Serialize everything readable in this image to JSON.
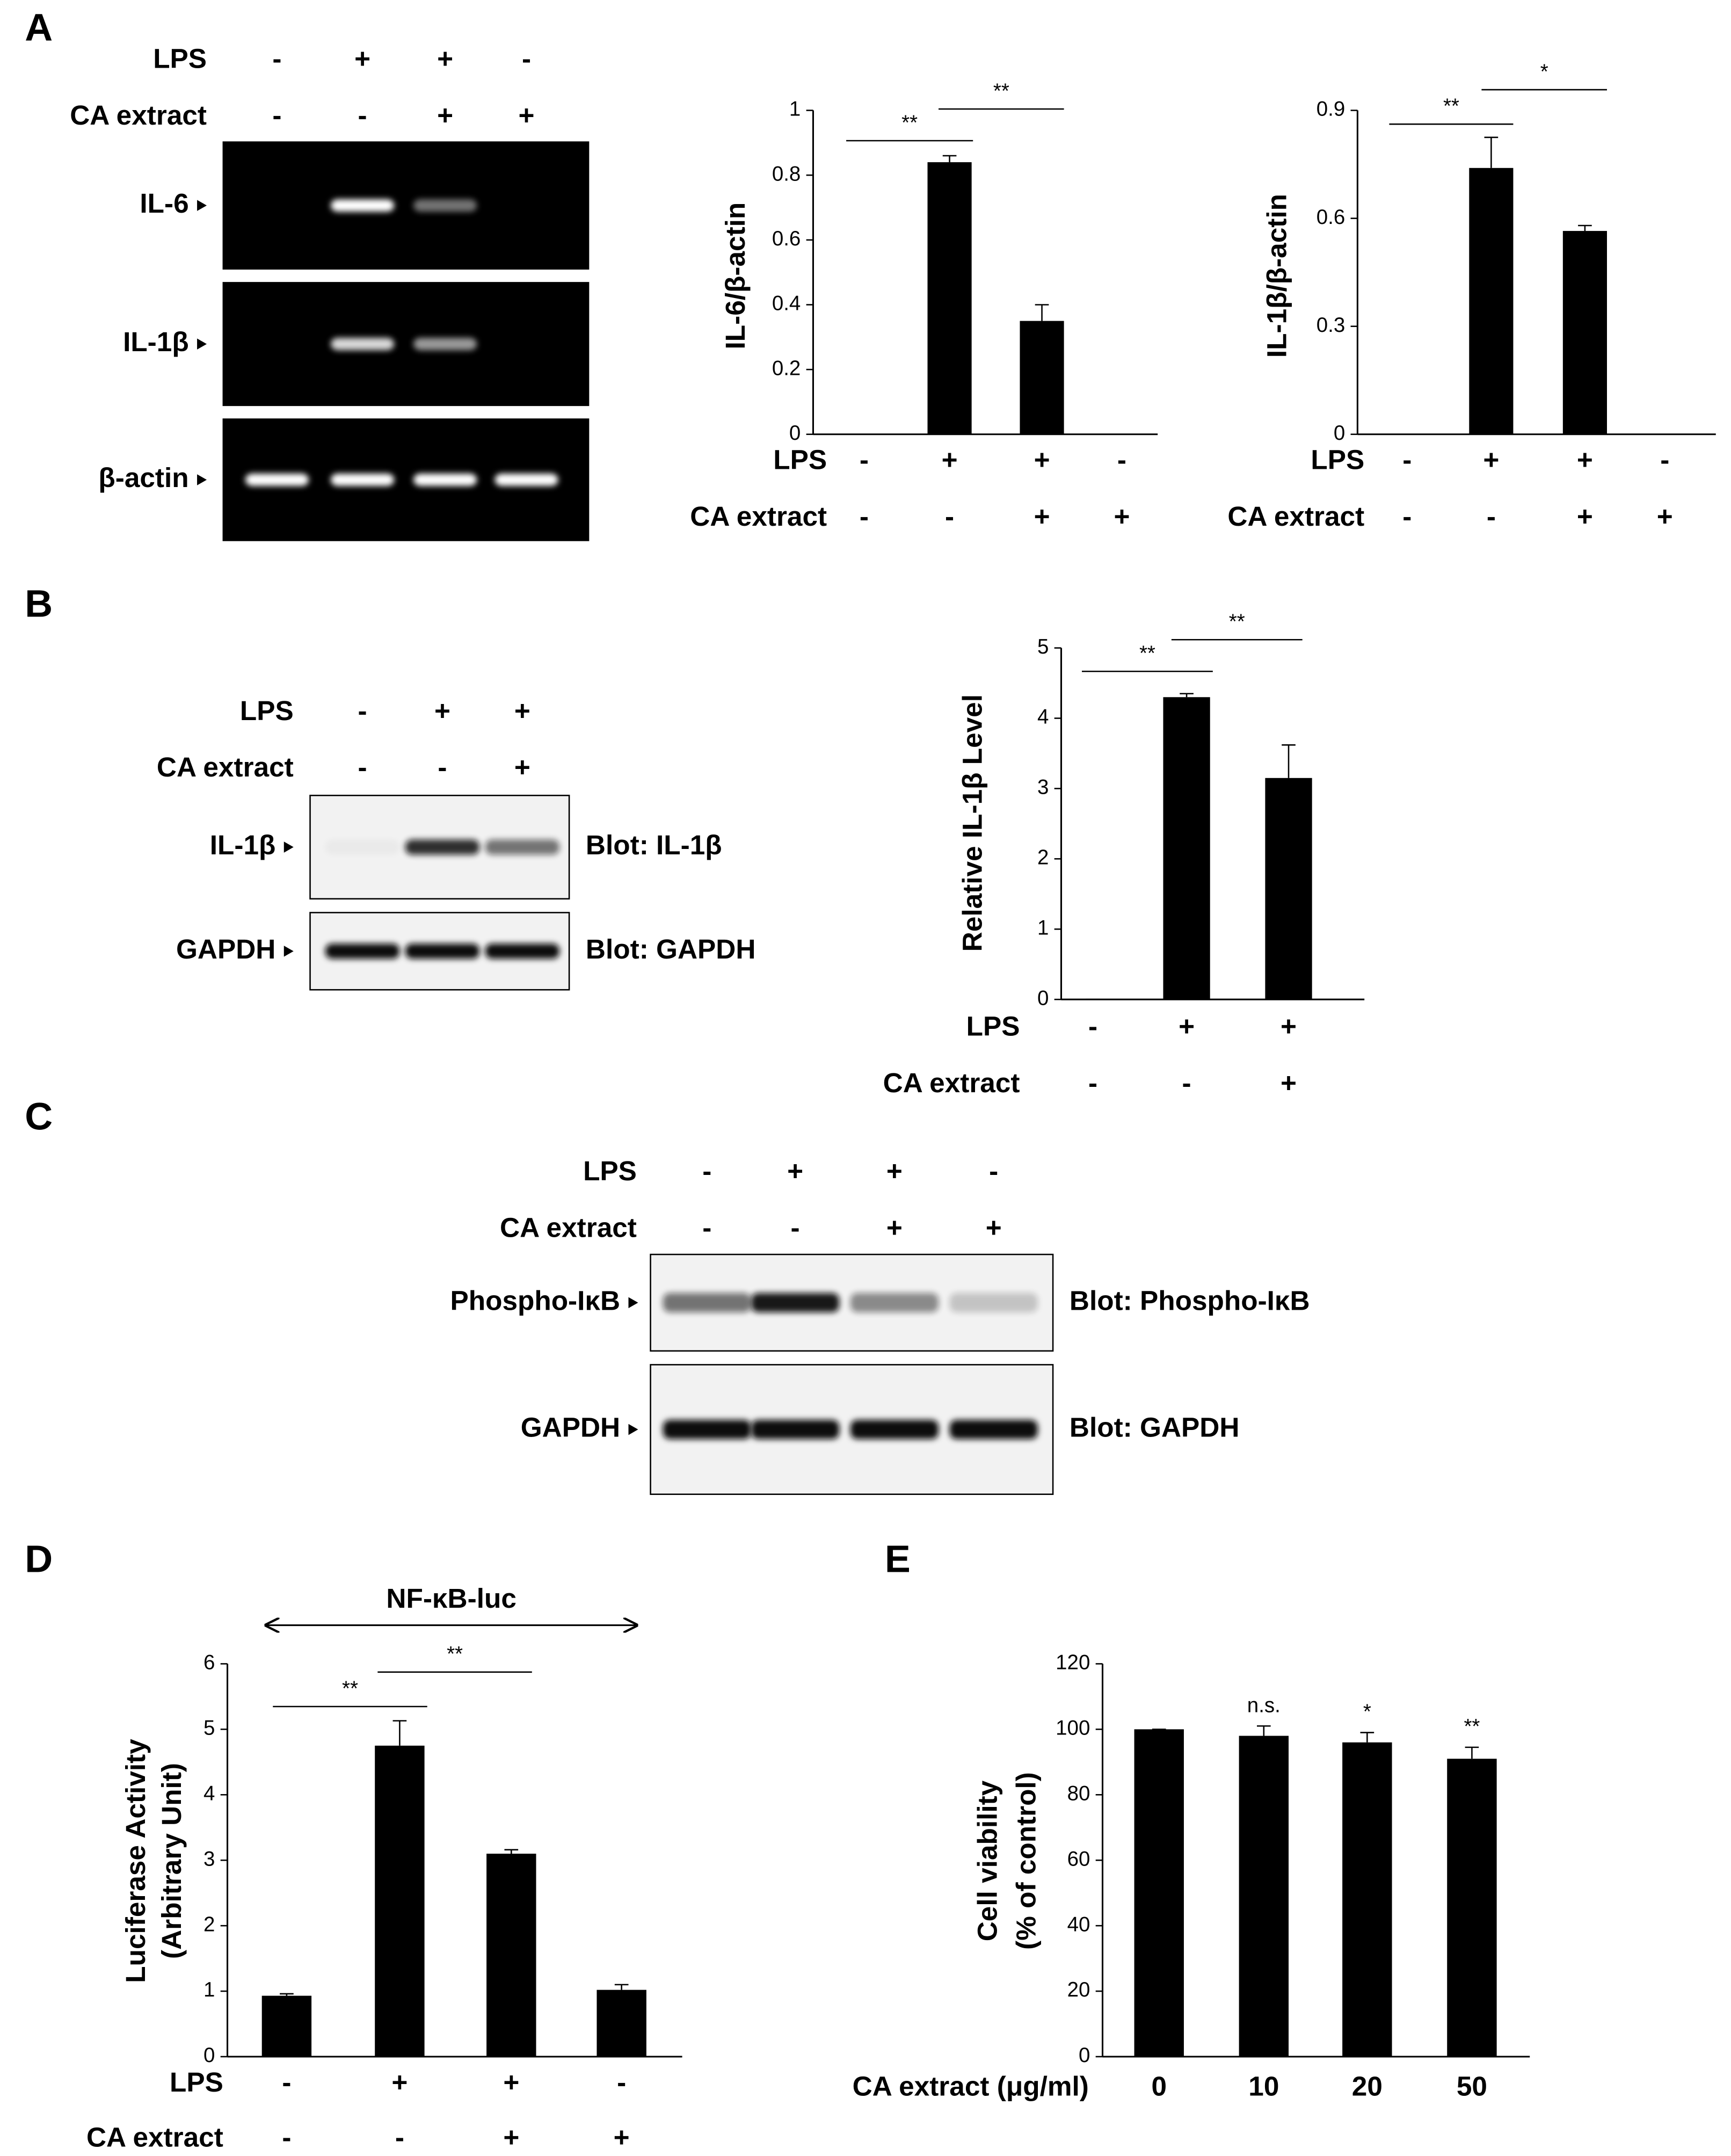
{
  "panel_labels": [
    "A",
    "B",
    "C",
    "D",
    "E"
  ],
  "blots": [
    {
      "treatments": [
        {
          "name": "LPS",
          "signs": [
            "-",
            "+",
            "+",
            "-"
          ]
        },
        {
          "name": "CA extract",
          "signs": [
            "-",
            "-",
            "+",
            "+"
          ]
        }
      ],
      "rows": [
        {
          "label": "IL-6"
        },
        {
          "label": "IL-1β"
        },
        {
          "label": "β-actin"
        }
      ]
    },
    {
      "treatments": [
        {
          "name": "LPS",
          "signs": [
            "-",
            "+",
            "+"
          ]
        },
        {
          "name": "CA extract",
          "signs": [
            "-",
            "-",
            "+"
          ]
        }
      ],
      "rows": [
        {
          "label": "IL-1β",
          "blot": "Blot: IL-1β"
        },
        {
          "label": "GAPDH",
          "blot": "Blot: GAPDH"
        }
      ]
    },
    {
      "treatments": [
        {
          "name": "LPS",
          "signs": [
            "-",
            "+",
            "+",
            "-"
          ]
        },
        {
          "name": "CA extract",
          "signs": [
            "-",
            "-",
            "+",
            "+"
          ]
        }
      ],
      "rows": [
        {
          "label": "Phospho-IκB",
          "blot": "Blot: Phospho-IκB"
        },
        {
          "label": "GAPDH",
          "blot": "Blot: GAPDH"
        }
      ]
    }
  ],
  "chart_data": [
    {
      "type": "bar",
      "y_label": "IL-6/β-actin",
      "color": "#000000",
      "treatments": [
        {
          "name": "LPS",
          "signs": [
            "-",
            "+",
            "+",
            "-"
          ]
        },
        {
          "name": "CA extract",
          "signs": [
            "-",
            "-",
            "+",
            "+"
          ]
        }
      ],
      "values": [
        0,
        0.84,
        0.35,
        0
      ],
      "errors": [
        0,
        0.02,
        0.05,
        0
      ],
      "ylim": [
        0,
        1
      ],
      "yticks": [
        0,
        0.2,
        0.4,
        0.6,
        0.8,
        1
      ],
      "significance": [
        "**",
        "**"
      ]
    },
    {
      "type": "bar",
      "y_label": "IL-1β/β-actin",
      "color": "#000000",
      "treatments": [
        {
          "name": "LPS",
          "signs": [
            "-",
            "+",
            "+",
            "-"
          ]
        },
        {
          "name": "CA extract",
          "signs": [
            "-",
            "-",
            "+",
            "+"
          ]
        }
      ],
      "values": [
        0,
        0.74,
        0.565,
        0
      ],
      "errors": [
        0,
        0.085,
        0.015,
        0
      ],
      "ylim": [
        0,
        0.9
      ],
      "yticks": [
        0,
        0.3,
        0.6,
        0.9
      ],
      "significance": [
        "**",
        "*"
      ]
    },
    {
      "type": "bar",
      "y_label": "Relative IL-1β Level",
      "color": "#000000",
      "treatments": [
        {
          "name": "LPS",
          "signs": [
            "-",
            "+",
            "+"
          ]
        },
        {
          "name": "CA extract",
          "signs": [
            "-",
            "-",
            "+"
          ]
        }
      ],
      "values": [
        0,
        4.3,
        3.15
      ],
      "errors": [
        0,
        0.05,
        0.47
      ],
      "ylim": [
        0,
        5
      ],
      "yticks": [
        0,
        1,
        2,
        3,
        4,
        5
      ],
      "significance": [
        "**",
        "**"
      ]
    },
    {
      "type": "bar",
      "title": "NF-κB-luc",
      "y_label": [
        "Luciferase Activity",
        "(Arbitrary Unit)"
      ],
      "color": "#000000",
      "treatments": [
        {
          "name": "LPS",
          "signs": [
            "-",
            "+",
            "+",
            "-"
          ]
        },
        {
          "name": "CA extract",
          "signs": [
            "-",
            "-",
            "+",
            "+"
          ]
        }
      ],
      "values": [
        0.93,
        4.75,
        3.1,
        1.02
      ],
      "errors": [
        0.03,
        0.38,
        0.06,
        0.08
      ],
      "ylim": [
        0,
        6
      ],
      "yticks": [
        0,
        1,
        2,
        3,
        4,
        5,
        6
      ],
      "significance": [
        "**",
        "**"
      ]
    },
    {
      "type": "bar",
      "y_label": [
        "Cell viability",
        "(% of control)"
      ],
      "x_label": "CA extract (μg/ml)",
      "color": "#000000",
      "categories": [
        "0",
        "10",
        "20",
        "50"
      ],
      "values": [
        100,
        98,
        96,
        91
      ],
      "errors": [
        0,
        3,
        3,
        3.5
      ],
      "annotations": [
        null,
        "n.s.",
        "*",
        "**"
      ],
      "ylim": [
        0,
        120
      ],
      "yticks": [
        0,
        20,
        40,
        60,
        80,
        100,
        120
      ]
    }
  ]
}
